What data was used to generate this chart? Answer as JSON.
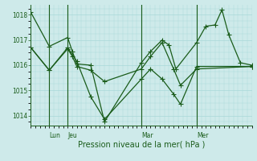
{
  "background_color": "#ceeaea",
  "grid_color": "#a8d8d8",
  "line_color": "#1a5c1a",
  "marker_color": "#1a5c1a",
  "yticks": [
    1014,
    1015,
    1016,
    1017,
    1018
  ],
  "ylim": [
    1013.6,
    1018.4
  ],
  "xlim": [
    0,
    96
  ],
  "vline_positions": [
    8,
    16,
    48,
    72
  ],
  "vline_labels": [
    "Lun",
    "Jeu",
    "Mar",
    "Mer"
  ],
  "vline_thick": [
    8,
    16,
    48,
    72
  ],
  "xlabel": "Pression niveau de la mer( hPa )",
  "series": [
    {
      "x": [
        0,
        8,
        16,
        18,
        20,
        26,
        32,
        48,
        52,
        57,
        60,
        63,
        72,
        76,
        80,
        83,
        86,
        91,
        96
      ],
      "y": [
        1018.1,
        1016.75,
        1017.1,
        1016.55,
        1016.05,
        1016.0,
        1013.75,
        1016.1,
        1016.55,
        1017.0,
        1016.8,
        1015.85,
        1016.9,
        1017.55,
        1017.6,
        1018.2,
        1017.2,
        1016.1,
        1016.0
      ]
    },
    {
      "x": [
        0,
        8,
        16,
        18,
        20,
        26,
        32,
        48,
        52,
        57,
        62,
        65,
        72,
        96
      ],
      "y": [
        1016.7,
        1015.8,
        1016.65,
        1016.35,
        1015.95,
        1015.8,
        1015.35,
        1015.85,
        1016.35,
        1016.9,
        1015.85,
        1015.2,
        1015.85,
        1015.95
      ]
    },
    {
      "x": [
        0,
        8,
        16,
        20,
        26,
        32,
        48,
        52,
        57,
        62,
        65,
        72,
        96
      ],
      "y": [
        1016.7,
        1015.8,
        1016.7,
        1016.15,
        1014.75,
        1013.85,
        1015.45,
        1015.85,
        1015.45,
        1014.85,
        1014.45,
        1015.95,
        1015.95
      ]
    }
  ]
}
